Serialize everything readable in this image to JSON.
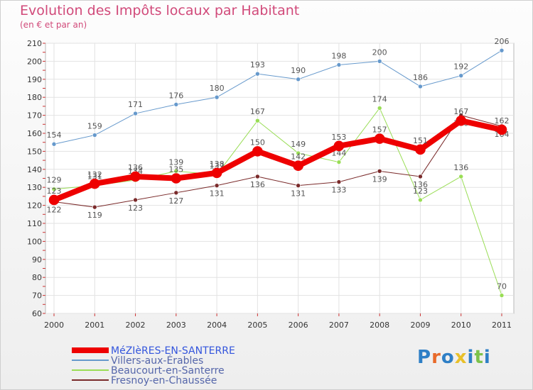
{
  "header": {
    "title": "Evolution des Impôts locaux par Habitant",
    "subtitle": "(en € et par an)"
  },
  "logo": {
    "text": "Proxiti",
    "colors": [
      "#2e7fc6",
      "#e86a2a",
      "#2e7fc6",
      "#e8c02a",
      "#2e7fc6",
      "#7cc24a",
      "#2e7fc6"
    ]
  },
  "chart_data": {
    "type": "line",
    "title": "Evolution des Impôts locaux par Habitant",
    "subtitle": "(en € et par an)",
    "xlabel": "",
    "ylabel": "",
    "x": [
      "2000",
      "2001",
      "2002",
      "2003",
      "2004",
      "2005",
      "2006",
      "2007",
      "2008",
      "2009",
      "2010",
      "2011"
    ],
    "ylim": [
      60,
      210
    ],
    "yticks": [
      60,
      70,
      80,
      90,
      100,
      110,
      120,
      130,
      140,
      150,
      160,
      170,
      180,
      190,
      200,
      210
    ],
    "grid": true,
    "legend_position": "bottom-left",
    "series": [
      {
        "name": "Villers-aux-Érables",
        "color": "#6699cc",
        "width": 1,
        "values": [
          154,
          159,
          171,
          176,
          180,
          193,
          190,
          198,
          200,
          186,
          192,
          206
        ]
      },
      {
        "name": "Beaucourt-en-Santerre",
        "color": "#99dd55",
        "width": 1,
        "values": [
          129,
          131,
          134,
          139,
          137,
          167,
          149,
          144,
          174,
          123,
          136,
          70
        ]
      },
      {
        "name": "Fresnoy-en-Chaussée",
        "color": "#7a2a2a",
        "width": 1,
        "values": [
          122,
          119,
          123,
          127,
          131,
          136,
          131,
          133,
          139,
          136,
          170,
          164
        ]
      },
      {
        "name": "MéZIèRES-EN-SANTERRE",
        "color": "#ee0000",
        "width": 8,
        "values": [
          123,
          132,
          136,
          135,
          138,
          150,
          142,
          153,
          157,
          151,
          167,
          162
        ]
      }
    ],
    "legend": [
      {
        "name": "MéZIèRES-EN-SANTERRE",
        "color": "#ee0000"
      },
      {
        "name": "Villers-aux-Érables",
        "color": "#6699cc"
      },
      {
        "name": "Beaucourt-en-Santerre",
        "color": "#99dd55"
      },
      {
        "name": "Fresnoy-en-Chaussée",
        "color": "#7a2a2a"
      }
    ]
  }
}
